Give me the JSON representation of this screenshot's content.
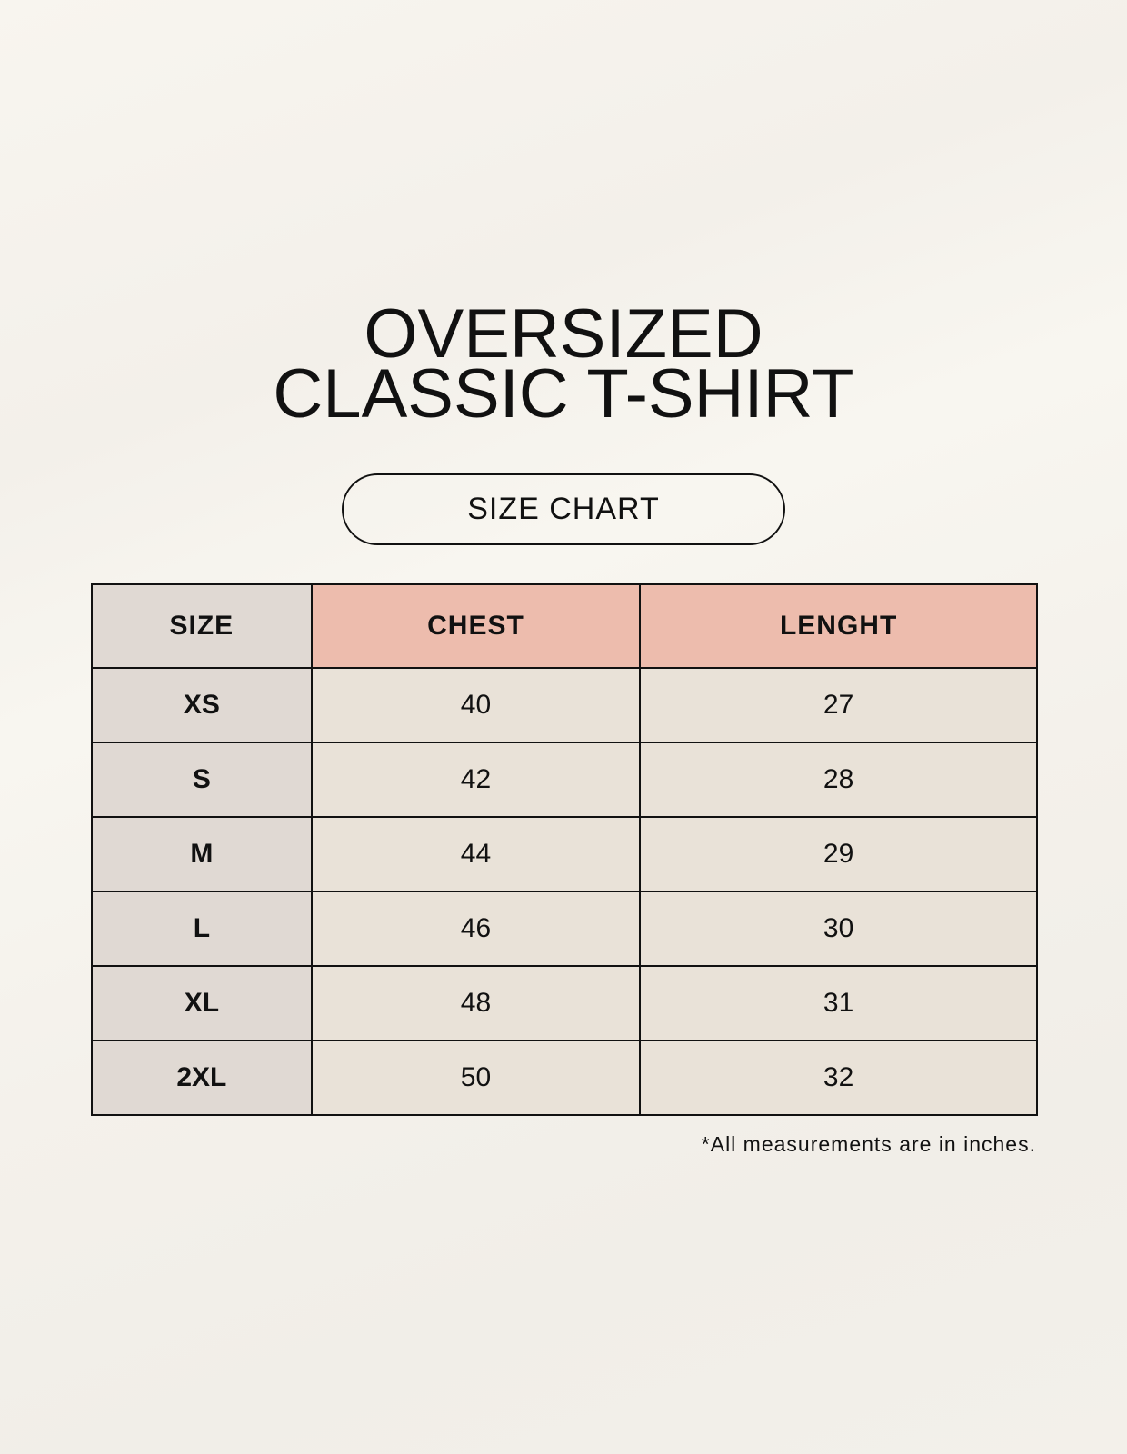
{
  "title_lines": [
    "OVERSIZED",
    "CLASSIC T-SHIRT"
  ],
  "badge": "SIZE CHART",
  "table": {
    "headers": [
      "SIZE",
      "CHEST",
      "LENGHT"
    ],
    "rows": [
      [
        "XS",
        "40",
        "27"
      ],
      [
        "S",
        "42",
        "28"
      ],
      [
        "M",
        "44",
        "29"
      ],
      [
        "L",
        "46",
        "30"
      ],
      [
        "XL",
        "48",
        "31"
      ],
      [
        "2XL",
        "50",
        "32"
      ]
    ]
  },
  "footnote": "*All measurements are in inches.",
  "colors": {
    "size_column": "#e0d9d3",
    "measure_header": "#edbcad",
    "cell": "#e9e2d8"
  }
}
